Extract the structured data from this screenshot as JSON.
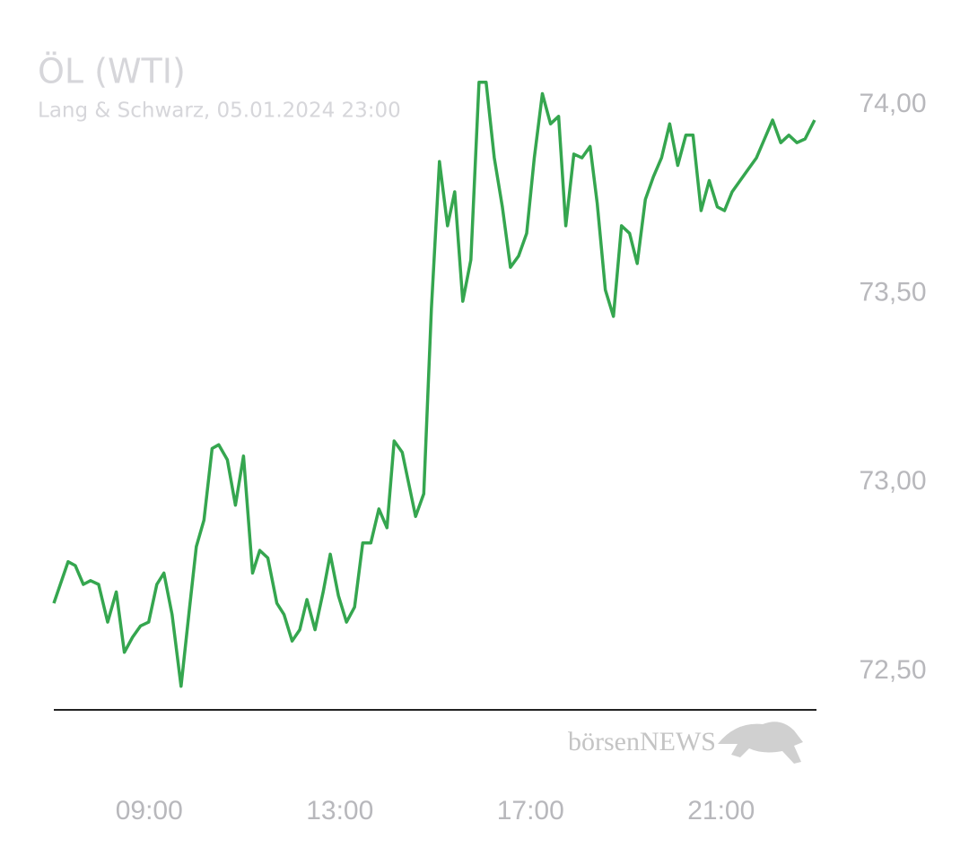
{
  "chart_data": {
    "type": "line",
    "title": "ÖL (WTI)",
    "subtitle": "Lang & Schwarz, 05.01.2024 23:00",
    "watermark": "börsenNEWS",
    "color": "#35a64f",
    "xlim": [
      7,
      23
    ],
    "xticks": [
      {
        "value": 9,
        "label": "09:00"
      },
      {
        "value": 13,
        "label": "13:00"
      },
      {
        "value": 17,
        "label": "17:00"
      },
      {
        "value": 21,
        "label": "21:00"
      }
    ],
    "ylim": [
      72.4,
      74.1
    ],
    "yticks": [
      {
        "value": 72.5,
        "label": "72,50"
      },
      {
        "value": 73,
        "label": "73,00"
      },
      {
        "value": 73.5,
        "label": "73,50"
      },
      {
        "value": 74,
        "label": "74,00"
      }
    ],
    "x": [
      7.0,
      7.3,
      7.45,
      7.62,
      7.77,
      7.94,
      8.13,
      8.31,
      8.48,
      8.65,
      8.82,
      8.99,
      9.16,
      9.31,
      9.48,
      9.67,
      9.84,
      9.99,
      10.15,
      10.32,
      10.46,
      10.64,
      10.81,
      10.98,
      11.17,
      11.32,
      11.49,
      11.68,
      11.83,
      12.0,
      12.16,
      12.31,
      12.48,
      12.65,
      12.8,
      12.97,
      13.14,
      13.31,
      13.48,
      13.65,
      13.82,
      13.99,
      14.14,
      14.31,
      14.44,
      14.59,
      14.76,
      14.92,
      15.09,
      15.26,
      15.41,
      15.58,
      15.75,
      15.92,
      16.07,
      16.24,
      16.41,
      16.58,
      16.75,
      16.92,
      17.08,
      17.25,
      17.42,
      17.59,
      17.74,
      17.91,
      18.08,
      18.25,
      18.4,
      18.57,
      18.74,
      18.91,
      19.08,
      19.24,
      19.41,
      19.58,
      19.75,
      19.92,
      20.09,
      20.26,
      20.41,
      20.58,
      20.75,
      20.92,
      21.07,
      21.23,
      21.4,
      21.57,
      21.74,
      21.91,
      22.08,
      22.25,
      22.42,
      22.59,
      22.76,
      22.96
    ],
    "values": [
      72.68,
      72.79,
      72.78,
      72.73,
      72.74,
      72.73,
      72.63,
      72.71,
      72.55,
      72.59,
      72.62,
      72.63,
      72.73,
      72.76,
      72.65,
      72.46,
      72.66,
      72.83,
      72.9,
      73.09,
      73.1,
      73.06,
      72.94,
      73.07,
      72.76,
      72.82,
      72.8,
      72.68,
      72.65,
      72.58,
      72.61,
      72.69,
      72.61,
      72.71,
      72.81,
      72.7,
      72.63,
      72.67,
      72.84,
      72.84,
      72.93,
      72.88,
      73.11,
      73.08,
      73.0,
      72.91,
      72.97,
      73.46,
      73.85,
      73.68,
      73.77,
      73.48,
      73.59,
      74.06,
      74.06,
      73.86,
      73.73,
      73.57,
      73.6,
      73.66,
      73.86,
      74.03,
      73.95,
      73.97,
      73.68,
      73.87,
      73.86,
      73.89,
      73.74,
      73.51,
      73.44,
      73.68,
      73.66,
      73.58,
      73.75,
      73.81,
      73.86,
      73.95,
      73.84,
      73.92,
      73.92,
      73.72,
      73.8,
      73.73,
      73.72,
      73.77,
      73.8,
      73.83,
      73.86,
      73.91,
      73.96,
      73.9,
      73.92,
      73.9,
      73.91,
      73.96
    ]
  }
}
